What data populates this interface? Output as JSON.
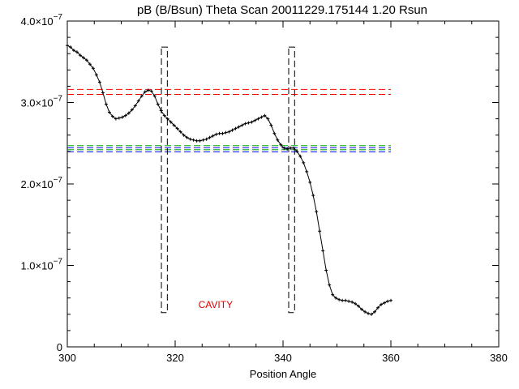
{
  "chart_data": {
    "type": "line",
    "title": "pB (B/Bsun) Theta Scan 20011229.175144 1.20 Rsun",
    "xlabel": "Position Angle",
    "ylabel": "",
    "xlim": [
      300,
      380
    ],
    "ylim": [
      0,
      4e-07
    ],
    "xticks": [
      300,
      320,
      340,
      360,
      380
    ],
    "yticks": [
      {
        "mant": "0",
        "exp": ""
      },
      {
        "mant": "1.0×10",
        "exp": "−7"
      },
      {
        "mant": "2.0×10",
        "exp": "−7"
      },
      {
        "mant": "3.0×10",
        "exp": "−7"
      },
      {
        "mant": "4.0×10",
        "exp": "−7"
      }
    ],
    "ytick_values": [
      0,
      1e-07,
      2e-07,
      3e-07,
      4e-07
    ],
    "series": [
      {
        "color": "#000000",
        "marker": "+",
        "x": [
          300.0,
          300.6,
          301.2,
          301.8,
          302.4,
          303.0,
          303.6,
          304.2,
          304.8,
          305.4,
          306.0,
          306.6,
          307.2,
          307.8,
          308.4,
          309.0,
          309.6,
          310.2,
          310.8,
          311.4,
          312.0,
          312.6,
          313.2,
          313.8,
          314.4,
          315.0,
          315.6,
          316.2,
          316.8,
          317.4,
          318.0,
          318.6,
          319.2,
          319.8,
          320.4,
          321.0,
          321.6,
          322.2,
          322.8,
          323.4,
          324.0,
          324.6,
          325.2,
          325.8,
          326.4,
          327.0,
          327.6,
          328.2,
          328.8,
          329.4,
          330.0,
          330.6,
          331.2,
          331.8,
          332.4,
          333.0,
          333.6,
          334.2,
          334.8,
          335.4,
          336.0,
          336.6,
          337.2,
          337.8,
          338.4,
          339.0,
          339.6,
          340.2,
          340.8,
          341.4,
          342.0,
          342.6,
          343.2,
          343.8,
          344.4,
          345.0,
          345.6,
          346.2,
          346.8,
          347.4,
          348.0,
          348.6,
          349.2,
          349.8,
          350.4,
          351.0,
          351.6,
          352.2,
          352.8,
          353.4,
          354.0,
          354.6,
          355.2,
          355.8,
          356.4,
          357.0,
          357.6,
          358.2,
          358.8,
          359.4,
          360.0
        ],
        "y": [
          3.7e-07,
          3.68e-07,
          3.64e-07,
          3.62e-07,
          3.58e-07,
          3.55e-07,
          3.52e-07,
          3.47e-07,
          3.42e-07,
          3.34e-07,
          3.25e-07,
          3.12e-07,
          2.98e-07,
          2.88e-07,
          2.83e-07,
          2.8e-07,
          2.81e-07,
          2.82e-07,
          2.84e-07,
          2.87e-07,
          2.91e-07,
          2.96e-07,
          3.02e-07,
          3.08e-07,
          3.13e-07,
          3.15e-07,
          3.14e-07,
          3.08e-07,
          2.98e-07,
          2.9e-07,
          2.84e-07,
          2.8e-07,
          2.76e-07,
          2.72e-07,
          2.68e-07,
          2.64e-07,
          2.6e-07,
          2.57e-07,
          2.55e-07,
          2.54e-07,
          2.53e-07,
          2.53e-07,
          2.54e-07,
          2.55e-07,
          2.57e-07,
          2.59e-07,
          2.61e-07,
          2.62e-07,
          2.62e-07,
          2.63e-07,
          2.64e-07,
          2.66e-07,
          2.68e-07,
          2.7e-07,
          2.72e-07,
          2.74e-07,
          2.75e-07,
          2.76e-07,
          2.78e-07,
          2.8e-07,
          2.82e-07,
          2.84e-07,
          2.8e-07,
          2.72e-07,
          2.62e-07,
          2.54e-07,
          2.48e-07,
          2.44e-07,
          2.43e-07,
          2.44e-07,
          2.44e-07,
          2.4e-07,
          2.34e-07,
          2.26e-07,
          2.15e-07,
          2.02e-07,
          1.86e-07,
          1.66e-07,
          1.42e-07,
          1.18e-07,
          9.4e-08,
          7.6e-08,
          6.4e-08,
          6e-08,
          5.8e-08,
          5.7e-08,
          5.7e-08,
          5.6e-08,
          5.5e-08,
          5.3e-08,
          5e-08,
          4.6e-08,
          4.3e-08,
          4.1e-08,
          4e-08,
          4.3e-08,
          4.8e-08,
          5.2e-08,
          5.4e-08,
          5.6e-08,
          5.7e-08
        ]
      }
    ],
    "vertical_markers": [
      {
        "x0": 317.6,
        "x1": 318.4,
        "y_bottom": 4.2e-08,
        "y_top": 3.68e-07,
        "color": "#000000",
        "dash": "dashed"
      },
      {
        "x0": 341.2,
        "x1": 342.0,
        "y_bottom": 4.2e-08,
        "y_top": 3.68e-07,
        "color": "#000000",
        "dash": "dashed"
      }
    ],
    "horizontal_lines": [
      {
        "y": 3.16e-07,
        "x0": 300,
        "x1": 360,
        "color": "#ff0000"
      },
      {
        "y": 3.1e-07,
        "x0": 300,
        "x1": 360,
        "color": "#ff0000"
      },
      {
        "y": 2.47e-07,
        "x0": 300,
        "x1": 360,
        "color": "#00aa00"
      },
      {
        "y": 2.445e-07,
        "x0": 300,
        "x1": 360,
        "color": "#0000ff"
      },
      {
        "y": 2.42e-07,
        "x0": 300,
        "x1": 360,
        "color": "#00aa00"
      },
      {
        "y": 2.395e-07,
        "x0": 300,
        "x1": 360,
        "color": "#0000ff"
      }
    ],
    "annotations": [
      {
        "text": "CAVITY",
        "x": 327.5,
        "y": 4.8e-08,
        "color": "#dd0000"
      }
    ],
    "grid": false
  }
}
